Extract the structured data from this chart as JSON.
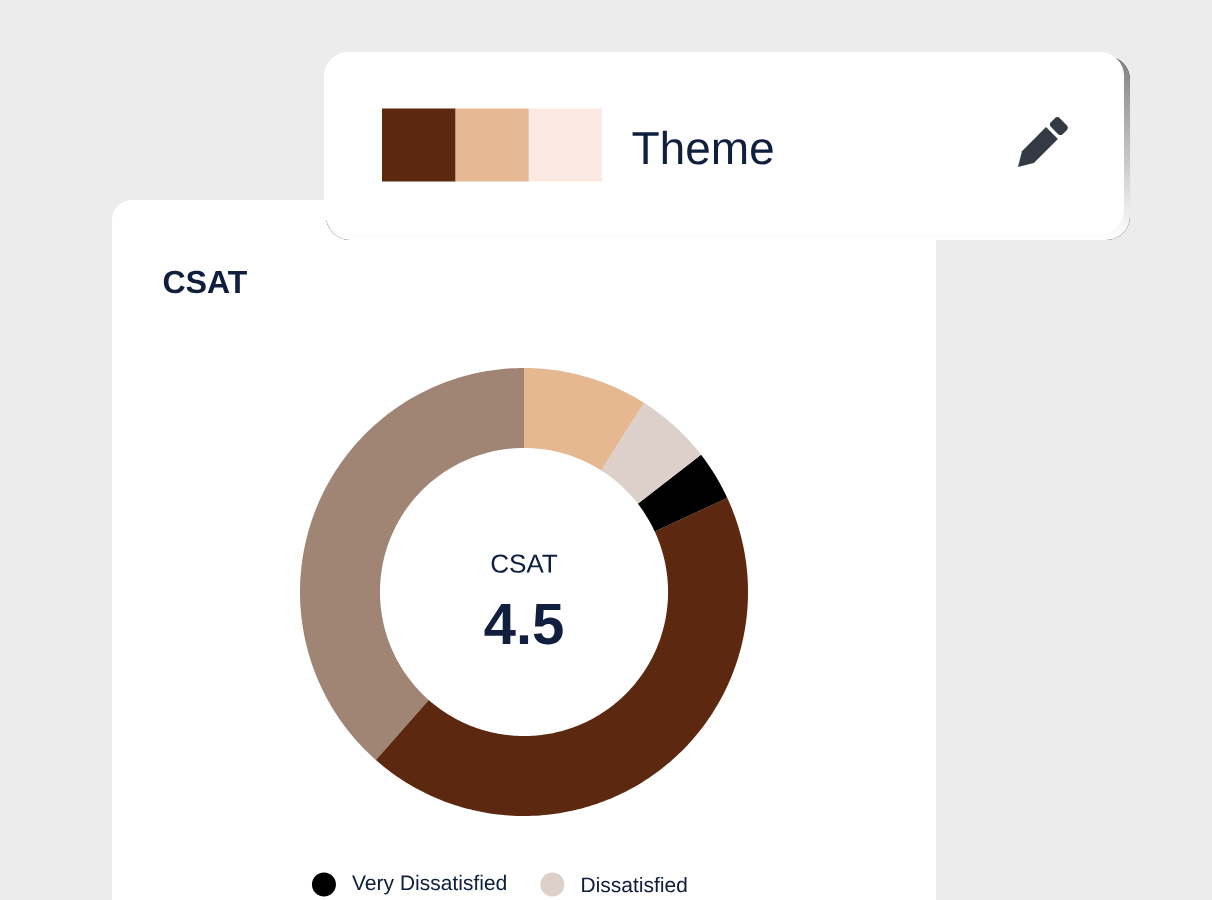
{
  "chart_data": {
    "type": "donut",
    "title": "CSAT",
    "categories": [
      null,
      null,
      "Very Dissatisfied",
      "Dissatisfied",
      null
    ],
    "values": [
      38.5,
      43.4,
      3.6,
      5.5,
      9.0
    ],
    "colors": [
      "#a08474",
      "#5c2910",
      "#000000",
      "#ddd0ca",
      "#e6b892"
    ],
    "legend": "bottom",
    "annotations": [
      "CSAT",
      "4.5",
      "Theme"
    ]
  }
}
